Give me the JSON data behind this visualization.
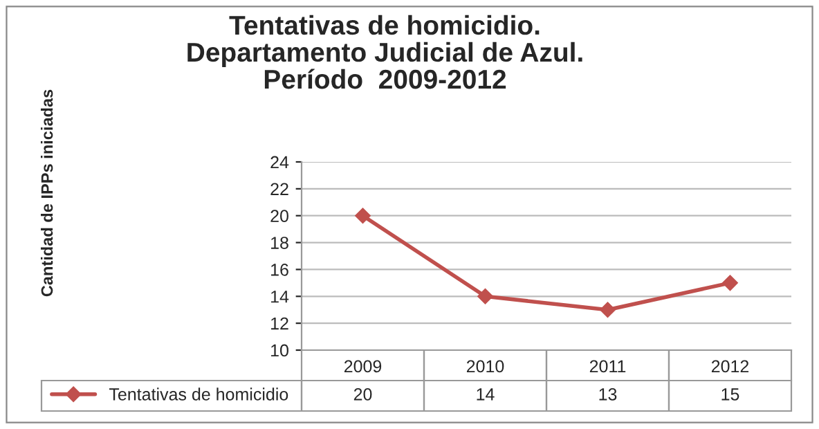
{
  "chart_data": {
    "type": "line",
    "title": "Tentativas de homicidio.\nDepartamento Judicial de Azul.\nPeríodo  2009-2012",
    "annotations": [
      "Cantidad de IPPs iniciadas"
    ],
    "categories": [
      "2009",
      "2010",
      "2011",
      "2012"
    ],
    "series": [
      {
        "name": "Tentativas de homicidio",
        "color": "#c0504d",
        "values": [
          20,
          14,
          13,
          15
        ]
      }
    ],
    "ylim": [
      10,
      24
    ],
    "yticks": [
      10,
      12,
      14,
      16,
      18,
      20,
      22,
      24
    ],
    "grid": "y",
    "marker": "diamond",
    "line_style": "solid",
    "data_labels": true,
    "legend": "bottom"
  }
}
